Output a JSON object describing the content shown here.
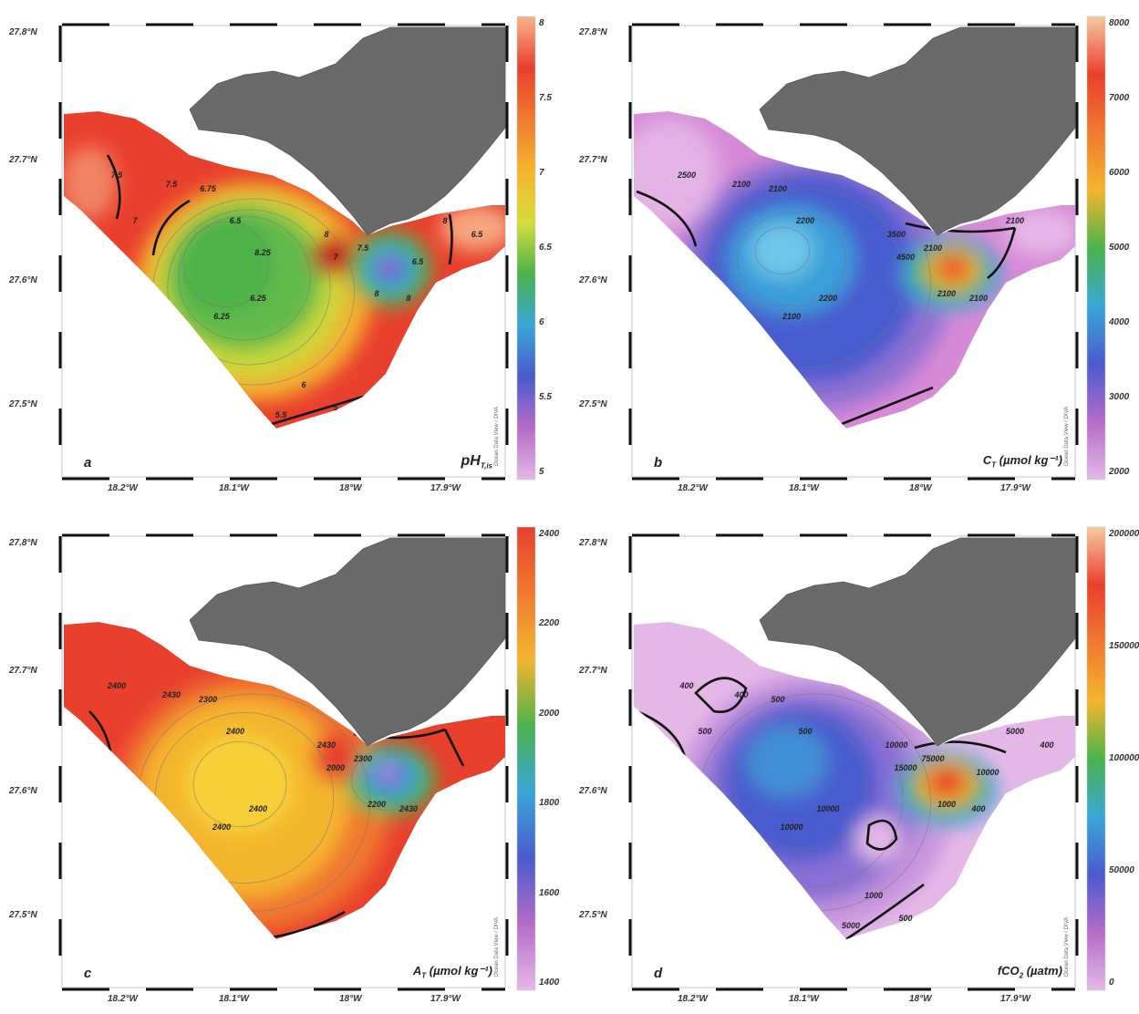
{
  "panels": [
    {
      "id": "a",
      "letter": "a",
      "variable": "pH",
      "variable_sub": "T,is",
      "variable_suffix": "",
      "colorbar_ticks": [
        "8",
        "7.5",
        "7",
        "6.5",
        "6",
        "5.5",
        "5"
      ],
      "contour_labels": [
        "7.5",
        "7.5",
        "6.75",
        "6.5",
        "6.25",
        "6.25",
        "8",
        "7",
        "7.5",
        "8",
        "8",
        "8",
        "6.5",
        "6",
        "5.5",
        "5",
        "7",
        "6.5",
        "8.25"
      ],
      "colorbar_colors": [
        "#f7b38a",
        "#e8402d",
        "#f07a2f",
        "#f4b52e",
        "#d6dd3a",
        "#4bb34a",
        "#3aa6d8",
        "#4a5bcf",
        "#b56cc7",
        "#e4b8e6"
      ]
    },
    {
      "id": "b",
      "letter": "b",
      "variable": "C",
      "variable_sub": "T",
      "variable_suffix": " (µmol kg⁻¹)",
      "colorbar_ticks": [
        "8000",
        "7000",
        "6000",
        "5000",
        "4000",
        "3000",
        "2000"
      ],
      "contour_labels": [
        "2500",
        "2100",
        "2100",
        "2200",
        "2200",
        "2100",
        "3500",
        "4500",
        "2100",
        "2100",
        "2100",
        "2100"
      ],
      "colorbar_colors": [
        "#f7c9a0",
        "#e8402d",
        "#f07a2f",
        "#f4b52e",
        "#4bb34a",
        "#3aa6d8",
        "#4a5bcf",
        "#b56cc7",
        "#e4b8e6"
      ]
    },
    {
      "id": "c",
      "letter": "c",
      "variable": "A",
      "variable_sub": "T",
      "variable_suffix": " (µmol kg⁻¹)",
      "colorbar_ticks": [
        "2400",
        "2200",
        "2000",
        "1800",
        "1600",
        "1400"
      ],
      "contour_labels": [
        "2400",
        "2430",
        "2300",
        "2400",
        "2400",
        "2400",
        "2430",
        "2000",
        "2300",
        "2200",
        "2430"
      ],
      "colorbar_colors": [
        "#e8402d",
        "#f07a2f",
        "#f4b52e",
        "#4bb34a",
        "#3aa6d8",
        "#4a5bcf",
        "#b56cc7",
        "#e4b8e6"
      ]
    },
    {
      "id": "d",
      "letter": "d",
      "variable": "fCO",
      "variable_sub": "2",
      "variable_suffix": " (µatm)",
      "colorbar_ticks": [
        "200000",
        "150000",
        "100000",
        "50000",
        "0"
      ],
      "contour_labels": [
        "400",
        "400",
        "500",
        "500",
        "10000",
        "10000",
        "10000",
        "15000",
        "75000",
        "1000",
        "400",
        "5000",
        "400",
        "1000",
        "5000",
        "500",
        "500",
        "10000"
      ],
      "colorbar_colors": [
        "#f7c9a0",
        "#e8402d",
        "#f07a2f",
        "#f4b52e",
        "#4bb34a",
        "#3aa6d8",
        "#4a5bcf",
        "#b56cc7",
        "#e4b8e6"
      ]
    }
  ],
  "lat_labels": [
    "27.8°N",
    "27.7°N",
    "27.6°N",
    "27.5°N"
  ],
  "lon_labels": [
    "18.2°W",
    "18.1°W",
    "18°W",
    "17.9°W"
  ],
  "credit_text": "Ocean Data View / DIVA"
}
